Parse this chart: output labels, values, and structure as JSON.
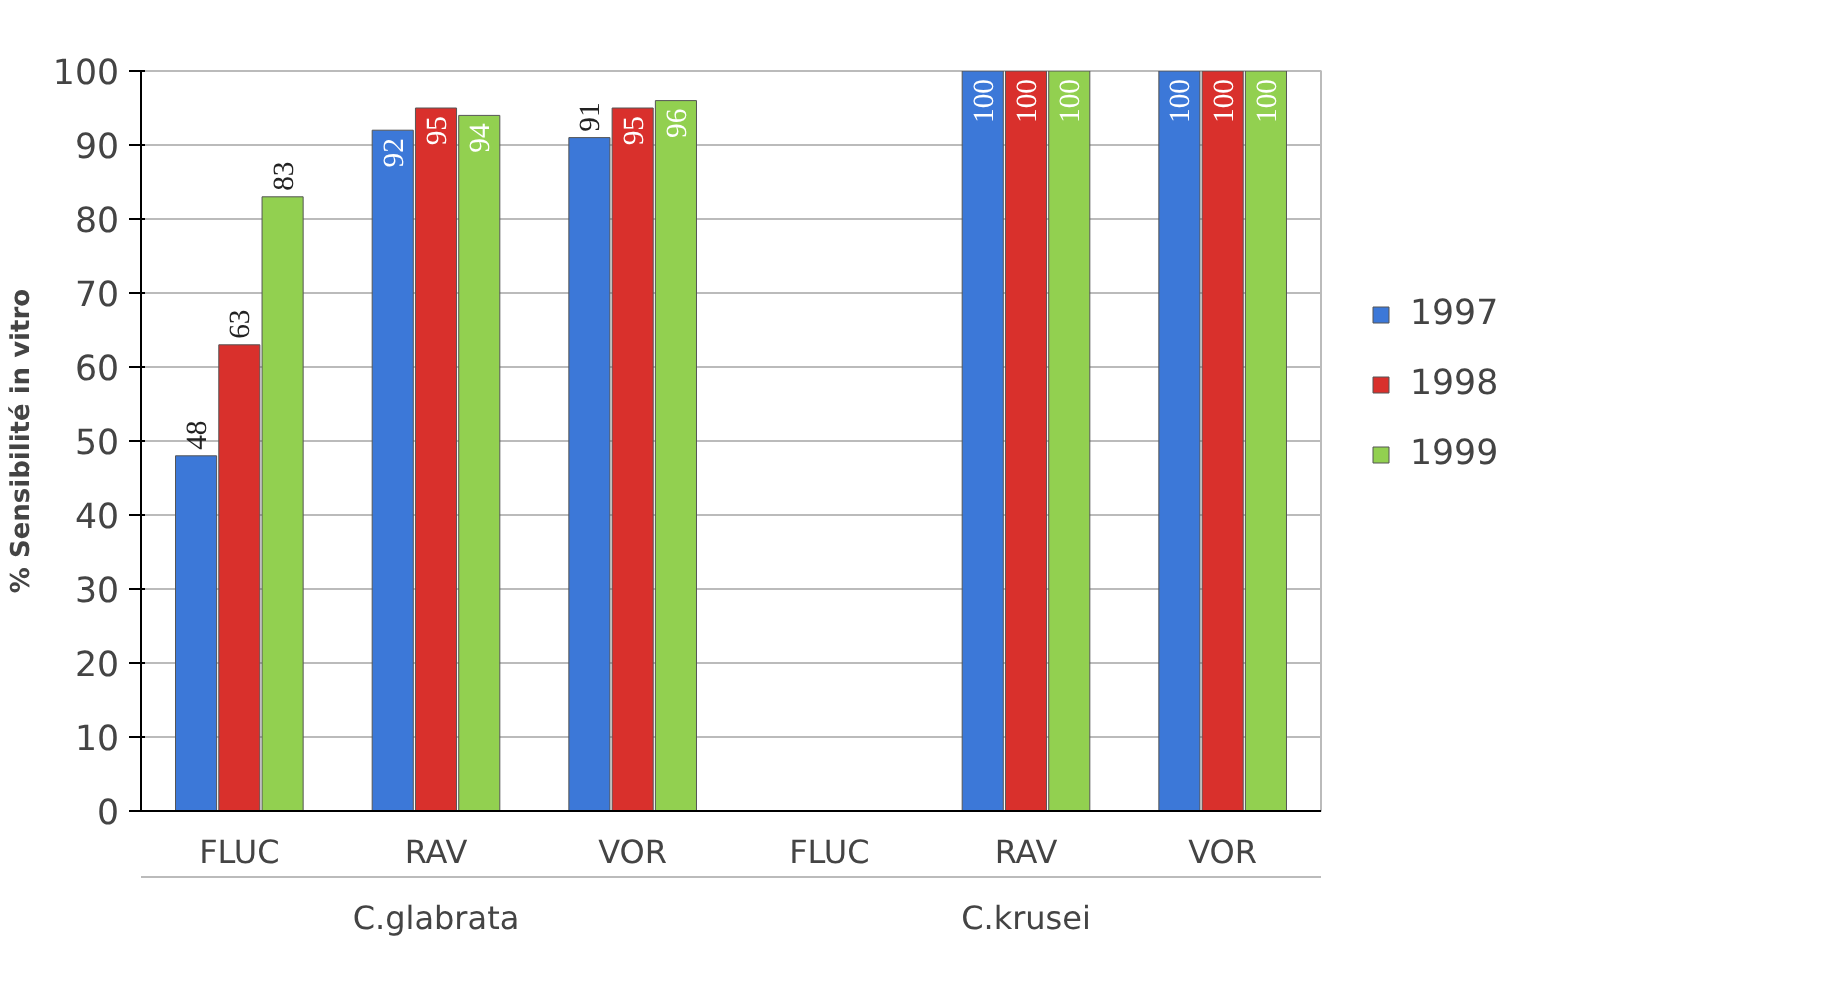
{
  "chart_data": {
    "type": "bar",
    "ylabel": "% Sensibilité in vitro",
    "categories": [
      "FLUC",
      "RAV",
      "VOR",
      "FLUC",
      "RAV",
      "VOR"
    ],
    "series": [
      {
        "name": "1997",
        "color": "#3c78d8",
        "values": [
          48,
          92,
          91,
          null,
          100,
          100
        ]
      },
      {
        "name": "1998",
        "color": "#d9302c",
        "values": [
          63,
          95,
          95,
          null,
          100,
          100
        ]
      },
      {
        "name": "1999",
        "color": "#92d050",
        "values": [
          83,
          94,
          96,
          null,
          100,
          100
        ]
      }
    ],
    "annotations": [
      "C.glabrata",
      "C.krusei"
    ],
    "ylim": [
      0,
      100
    ],
    "yticks": [
      0,
      10,
      20,
      30,
      40,
      50,
      60,
      70,
      80,
      90,
      100
    ],
    "grid": "y",
    "legend": "right",
    "data_labels": true
  }
}
